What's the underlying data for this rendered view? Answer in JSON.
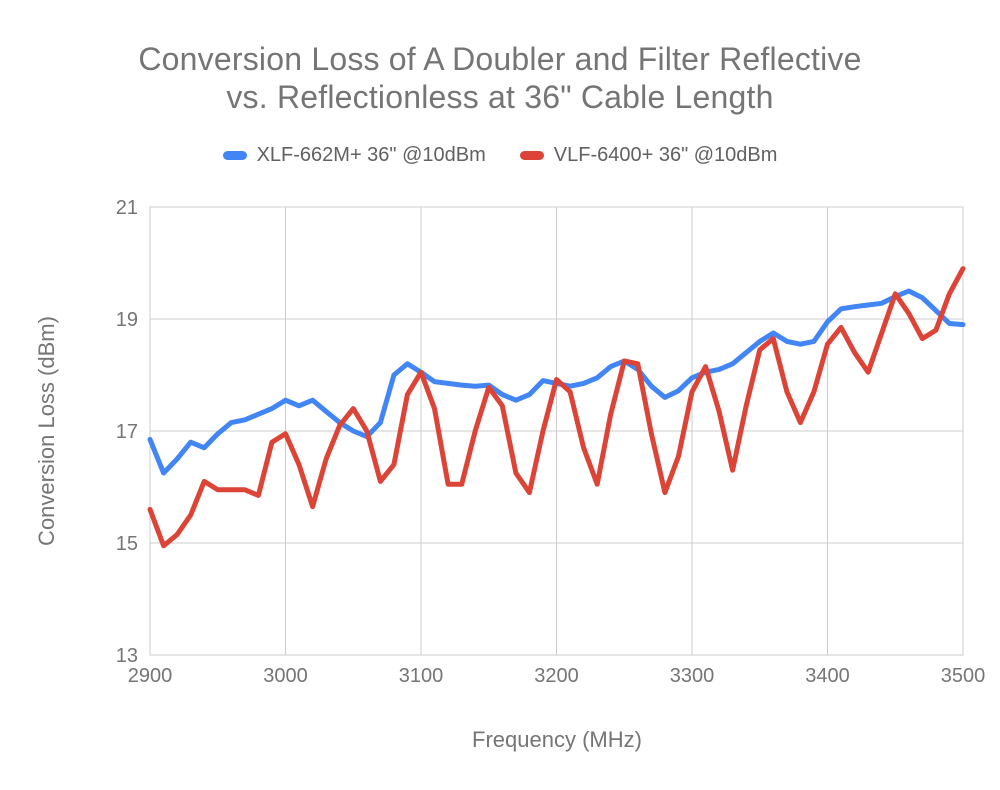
{
  "title": {
    "line1": "Conversion Loss of A Doubler and Filter Reflective",
    "line2": "vs. Reflectionless at 36\" Cable Length"
  },
  "legend": [
    {
      "label": "XLF-662M+ 36\" @10dBm",
      "color": "#4285F4"
    },
    {
      "label": "VLF-6400+ 36\" @10dBm",
      "color": "#DB4437"
    }
  ],
  "axes": {
    "x": {
      "title": "Frequency (MHz)",
      "tick_labels": [
        "2900",
        "3000",
        "3100",
        "3200",
        "3300",
        "3400",
        "3500"
      ]
    },
    "y": {
      "title": "Conversion Loss (dBm)",
      "tick_labels": [
        "13",
        "15",
        "17",
        "19",
        "21"
      ]
    }
  },
  "colors": {
    "background": "#ffffff",
    "gridline": "#cccccc",
    "tick_label": "#757575",
    "title_text": "#757575",
    "legend_text": "#616161",
    "series_blue": "#4285F4",
    "series_red": "#DB4437"
  },
  "chart_data": {
    "type": "line",
    "title": "Conversion Loss of A Doubler and Filter Reflective vs. Reflectionless at 36\" Cable Length",
    "xlabel": "Frequency (MHz)",
    "ylabel": "Conversion Loss (dBm)",
    "xlim": [
      2900,
      3500
    ],
    "ylim": [
      13,
      21
    ],
    "x_ticks": [
      2900,
      3000,
      3100,
      3200,
      3300,
      3400,
      3500
    ],
    "y_ticks": [
      13,
      15,
      17,
      19,
      21
    ],
    "grid": true,
    "legend_position": "top",
    "x": [
      2900,
      2910,
      2920,
      2930,
      2940,
      2950,
      2960,
      2970,
      2980,
      2990,
      3000,
      3010,
      3020,
      3030,
      3040,
      3050,
      3060,
      3070,
      3080,
      3090,
      3100,
      3110,
      3120,
      3130,
      3140,
      3150,
      3160,
      3170,
      3180,
      3190,
      3200,
      3210,
      3220,
      3230,
      3240,
      3250,
      3260,
      3270,
      3280,
      3290,
      3300,
      3310,
      3320,
      3330,
      3340,
      3350,
      3360,
      3370,
      3380,
      3390,
      3400,
      3410,
      3420,
      3430,
      3440,
      3450,
      3460,
      3470,
      3480,
      3490,
      3500
    ],
    "series": [
      {
        "name": "XLF-662M+ 36\" @10dBm",
        "color": "#4285F4",
        "values": [
          16.85,
          16.25,
          16.5,
          16.8,
          16.7,
          16.95,
          17.15,
          17.2,
          17.3,
          17.4,
          17.55,
          17.45,
          17.55,
          17.35,
          17.15,
          17.0,
          16.9,
          17.15,
          18.0,
          18.2,
          18.05,
          17.88,
          17.85,
          17.82,
          17.8,
          17.82,
          17.65,
          17.55,
          17.65,
          17.9,
          17.85,
          17.8,
          17.85,
          17.95,
          18.15,
          18.25,
          18.1,
          17.8,
          17.6,
          17.72,
          17.95,
          18.05,
          18.1,
          18.2,
          18.4,
          18.6,
          18.75,
          18.6,
          18.55,
          18.6,
          18.95,
          19.18,
          19.22,
          19.25,
          19.28,
          19.4,
          19.5,
          19.38,
          19.15,
          18.92,
          18.9
        ]
      },
      {
        "name": "VLF-6400+ 36\" @10dBm",
        "color": "#DB4437",
        "values": [
          15.6,
          14.95,
          15.15,
          15.5,
          16.1,
          15.95,
          15.95,
          15.95,
          15.85,
          16.8,
          16.95,
          16.4,
          15.65,
          16.5,
          17.1,
          17.4,
          17.0,
          16.1,
          16.4,
          17.65,
          18.05,
          17.4,
          16.05,
          16.05,
          17.0,
          17.78,
          17.45,
          16.25,
          15.9,
          17.0,
          17.92,
          17.7,
          16.7,
          16.05,
          17.3,
          18.25,
          18.2,
          16.95,
          15.9,
          16.55,
          17.7,
          18.15,
          17.35,
          16.3,
          17.45,
          18.45,
          18.65,
          17.7,
          17.15,
          17.7,
          18.55,
          18.85,
          18.4,
          18.05,
          18.75,
          19.45,
          19.1,
          18.65,
          18.8,
          19.45,
          19.9
        ]
      }
    ]
  }
}
